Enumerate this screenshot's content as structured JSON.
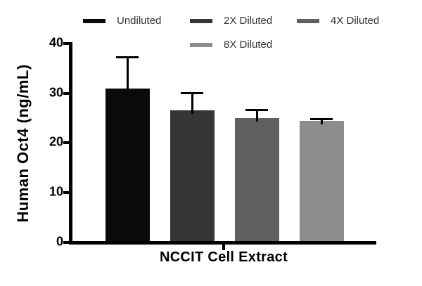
{
  "figure": {
    "background": "#ffffff",
    "axis_color": "#000000",
    "legend_text_color": "#333333"
  },
  "chart_data": {
    "type": "bar",
    "title": "",
    "xlabel": "NCCIT Cell Extract",
    "ylabel": "Human Oct4 (ng/mL)",
    "categories": [
      "NCCIT Cell Extract"
    ],
    "series": [
      {
        "name": "Undiluted",
        "value": 30.9,
        "error_plus": 6.4,
        "color": "#0a0a0a"
      },
      {
        "name": "2X Diluted",
        "value": 26.5,
        "error_plus": 3.6,
        "color": "#363636"
      },
      {
        "name": "4X Diluted",
        "value": 25.0,
        "error_plus": 1.7,
        "color": "#606060"
      },
      {
        "name": "8X Diluted",
        "value": 24.4,
        "error_plus": 0.5,
        "color": "#8d8d8d"
      }
    ],
    "y_ticks": [
      0,
      10,
      20,
      30,
      40
    ],
    "ylim": [
      0,
      40
    ],
    "grid": false,
    "error_bars": "upper-only",
    "legend_position": "top"
  }
}
